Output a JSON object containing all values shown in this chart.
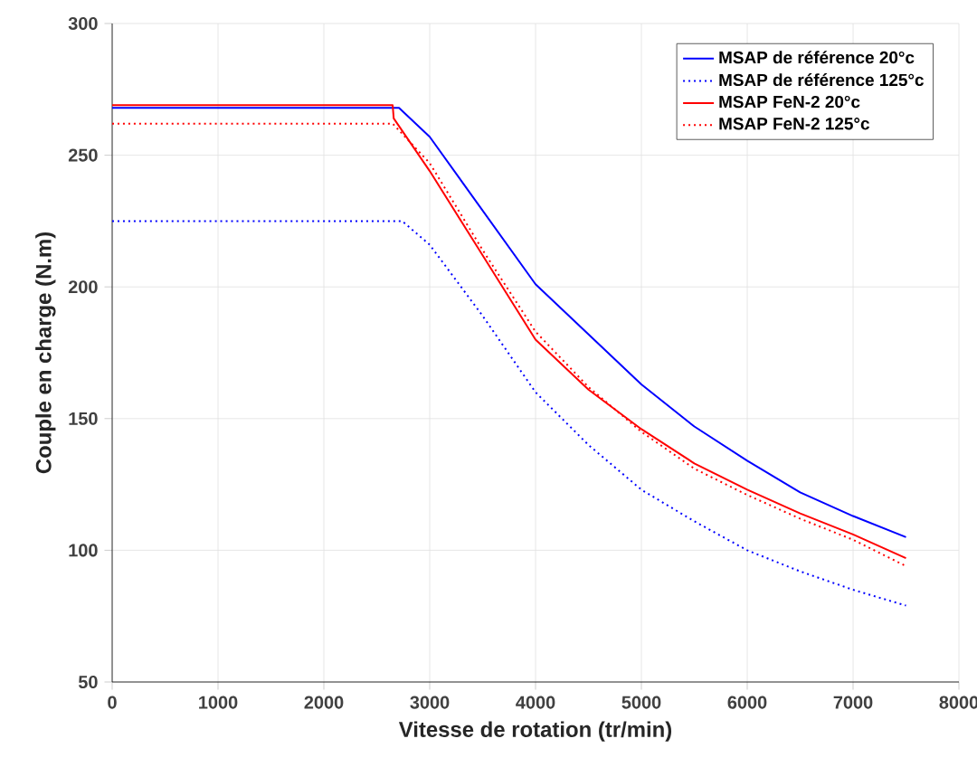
{
  "chart_data": {
    "type": "line",
    "xlabel": "Vitesse de rotation (tr/min)",
    "ylabel": "Couple en charge (N.m)",
    "xlim": [
      0,
      8000
    ],
    "ylim": [
      50,
      300
    ],
    "xticks": [
      0,
      1000,
      2000,
      3000,
      4000,
      5000,
      6000,
      7000,
      8000
    ],
    "yticks": [
      50,
      100,
      150,
      200,
      250,
      300
    ],
    "grid": true,
    "legend": "top right",
    "series": [
      {
        "name": "MSAP de référence 20°c",
        "color": "#0000ff",
        "line_style": "solid",
        "x": [
          0,
          2710,
          3000,
          3500,
          4000,
          4500,
          5000,
          5500,
          6000,
          6500,
          7000,
          7500
        ],
        "values": [
          268,
          268,
          257,
          229,
          201,
          182,
          163,
          147,
          134,
          122,
          113,
          105
        ]
      },
      {
        "name": "MSAP de référence 125°c",
        "color": "#0000ff",
        "line_style": "dotted",
        "x": [
          0,
          2740,
          3000,
          3500,
          4000,
          4500,
          5000,
          5500,
          6000,
          6500,
          7000,
          7500
        ],
        "values": [
          225,
          225,
          216,
          189,
          160,
          140,
          123,
          111,
          100,
          92,
          85,
          79
        ]
      },
      {
        "name": "MSAP FeN-2 20°c",
        "color": "#ff0000",
        "line_style": "solid",
        "x": [
          0,
          2650,
          2660,
          3000,
          3500,
          4000,
          4500,
          5000,
          5500,
          6000,
          6500,
          7000,
          7500
        ],
        "values": [
          269,
          269,
          264,
          244,
          212,
          180,
          161,
          146,
          133,
          123,
          114,
          106,
          97
        ]
      },
      {
        "name": "MSAP FeN-2 125°c",
        "color": "#ff0000",
        "line_style": "dotted",
        "x": [
          0,
          2650,
          3000,
          3500,
          4000,
          4500,
          5000,
          5500,
          6000,
          6500,
          7000,
          7500
        ],
        "values": [
          262,
          262,
          247,
          214,
          183,
          162,
          145,
          131,
          121,
          112,
          104,
          94
        ]
      }
    ]
  }
}
